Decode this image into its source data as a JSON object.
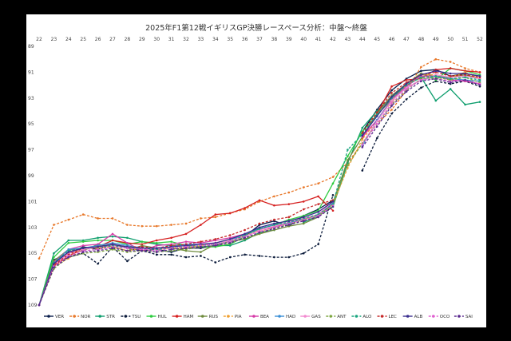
{
  "chart_data": {
    "type": "line",
    "title": "2025年F1第12戦イギリスGP決勝レースペース分析：中盤〜終盤",
    "x": [
      22,
      23,
      24,
      25,
      26,
      27,
      28,
      29,
      30,
      31,
      32,
      33,
      34,
      35,
      36,
      37,
      38,
      39,
      40,
      41,
      42,
      43,
      44,
      45,
      46,
      47,
      48,
      49,
      50,
      51,
      52
    ],
    "xlim": [
      22,
      52
    ],
    "ylim": [
      89,
      109
    ],
    "y_axis_inverted": true,
    "y_ticks": [
      89,
      91,
      93,
      95,
      97,
      99,
      101,
      103,
      105,
      107,
      109
    ],
    "grid": "none",
    "legend_position": "bottom",
    "series": [
      {
        "name": "VER",
        "color": "#0b1f4d",
        "dash": "solid",
        "marker": "circle",
        "values": [
          109,
          105.5,
          105,
          104.5,
          104.7,
          104.3,
          104.6,
          104.8,
          104.7,
          104.9,
          104.6,
          104.6,
          104.4,
          104.0,
          103.7,
          102.8,
          102.5,
          102.9,
          102.1,
          101.6,
          100.9,
          null,
          95.6,
          93.9,
          92.4,
          91.5,
          90.9,
          90.8,
          91.3,
          91.1,
          91.3
        ]
      },
      {
        "name": "NOR",
        "color": "#e8782a",
        "dash": "dash",
        "marker": "circle",
        "values": [
          105.4,
          102.8,
          102.4,
          102.0,
          102.3,
          102.3,
          102.8,
          102.9,
          102.9,
          102.8,
          102.7,
          102.3,
          102.2,
          101.9,
          101.6,
          101.0,
          100.6,
          100.3,
          99.9,
          99.6,
          99.1,
          98.0,
          96.5,
          95.0,
          93.9,
          92.4,
          90.6,
          90.0,
          90.2,
          90.7,
          91.0
        ]
      },
      {
        "name": "STR",
        "color": "#0f9e6e",
        "dash": "solid",
        "marker": "circle",
        "values": [
          109,
          105.0,
          104.0,
          104.0,
          103.8,
          103.7,
          103.8,
          104.1,
          104.3,
          104.4,
          104.3,
          104.5,
          104.4,
          104.4,
          104.0,
          103.4,
          103.2,
          null,
          102.6,
          102.1,
          101.4,
          98.0,
          95.3,
          94.0,
          92.9,
          92.0,
          91.4,
          93.2,
          92.3,
          93.5,
          93.3
        ]
      },
      {
        "name": "TSU",
        "color": "#0a1a3a",
        "dash": "dash",
        "marker": "circle",
        "values": [
          109,
          105.9,
          105.3,
          105.0,
          105.8,
          104.5,
          105.6,
          104.8,
          105.1,
          105.1,
          105.3,
          105.2,
          105.7,
          105.3,
          105.1,
          105.2,
          105.3,
          105.3,
          105.0,
          104.3,
          100.5,
          null,
          98.6,
          96.1,
          94.2,
          93.1,
          92.2,
          91.7,
          91.9,
          91.7,
          92.1
        ]
      },
      {
        "name": "HUL",
        "color": "#2ecc40",
        "dash": "solid",
        "marker": "circle",
        "values": [
          109,
          105.3,
          104.2,
          104.1,
          104.0,
          104.0,
          104.3,
          104.1,
          104.2,
          104.1,
          104.4,
          104.5,
          104.5,
          104.3,
          103.7,
          103.1,
          102.8,
          102.4,
          102.1,
          101.7,
          99.6,
          97.5,
          95.6,
          94.3,
          93.1,
          91.9,
          91.1,
          91.6,
          90.7,
          90.9,
          91.2
        ]
      },
      {
        "name": "HAM",
        "color": "#d62020",
        "dash": "solid",
        "marker": "circle",
        "values": [
          109,
          106.0,
          105.2,
          104.7,
          104.5,
          104.0,
          104.2,
          104.3,
          104.0,
          103.8,
          103.5,
          102.8,
          102.0,
          101.9,
          101.5,
          100.9,
          101.3,
          101.2,
          101.0,
          100.6,
          101.7,
          null,
          96.1,
          94.2,
          92.1,
          91.6,
          91.5,
          90.8,
          90.7,
          90.9,
          91.0
        ]
      },
      {
        "name": "RUS",
        "color": "#6e8b3d",
        "dash": "solid",
        "marker": "circle",
        "values": [
          109,
          105.6,
          104.7,
          104.8,
          104.3,
          104.5,
          104.8,
          104.4,
          104.6,
          104.6,
          104.8,
          104.9,
          104.3,
          104.1,
          103.9,
          103.5,
          103.2,
          102.9,
          102.7,
          102.2,
          101.1,
          97.8,
          96.0,
          94.2,
          92.8,
          91.9,
          91.1,
          91.3,
          91.4,
          91.2,
          91.5
        ]
      },
      {
        "name": "PIA",
        "color": "#f0a030",
        "dash": "dash",
        "marker": "circle",
        "values": [
          109,
          106.0,
          105.4,
          104.6,
          104.6,
          104.5,
          104.8,
          104.6,
          104.7,
          104.6,
          104.6,
          104.4,
          104.2,
          103.9,
          103.6,
          103.3,
          103.0,
          102.7,
          102.4,
          102.0,
          101.2,
          98.4,
          96.2,
          94.7,
          93.3,
          92.0,
          91.2,
          91.2,
          91.4,
          91.0,
          91.5
        ]
      },
      {
        "name": "BEA",
        "color": "#d63aa8",
        "dash": "solid",
        "marker": "circle",
        "values": [
          109,
          105.7,
          104.7,
          104.4,
          104.3,
          103.5,
          104.2,
          104.8,
          104.4,
          104.3,
          104.1,
          104.2,
          104.0,
          103.8,
          103.5,
          103.1,
          103.0,
          102.6,
          102.3,
          102.0,
          101.0,
          null,
          96.0,
          94.7,
          93.1,
          92.1,
          91.3,
          91.3,
          91.6,
          91.7,
          91.9
        ]
      },
      {
        "name": "HAD",
        "color": "#3a8fd6",
        "dash": "solid",
        "marker": "circle",
        "values": [
          109,
          105.8,
          104.7,
          104.6,
          104.4,
          104.2,
          104.4,
          104.6,
          104.6,
          104.5,
          104.3,
          104.3,
          104.3,
          104.0,
          103.5,
          103.1,
          102.8,
          102.7,
          102.3,
          102.0,
          101.1,
          null,
          96.7,
          94.7,
          93.2,
          92.2,
          91.6,
          91.3,
          91.5,
          91.6,
          91.7
        ]
      },
      {
        "name": "GAS",
        "color": "#f28ad0",
        "dash": "solid",
        "marker": "circle",
        "values": [
          109,
          105.9,
          105.0,
          104.7,
          104.5,
          104.4,
          104.6,
          104.6,
          104.7,
          104.5,
          104.4,
          104.3,
          104.3,
          104.0,
          103.7,
          103.2,
          102.9,
          102.6,
          102.3,
          102.0,
          101.0,
          null,
          96.5,
          94.8,
          93.2,
          92.2,
          91.6,
          91.2,
          91.4,
          91.3,
          91.5
        ]
      },
      {
        "name": "ANT",
        "color": "#7da640",
        "dash": "dash",
        "marker": "circle",
        "values": [
          109,
          106.2,
          105.3,
          105.0,
          104.9,
          104.7,
          104.9,
          104.8,
          104.9,
          104.8,
          104.7,
          104.5,
          104.4,
          104.2,
          103.8,
          103.5,
          103.0,
          102.8,
          102.4,
          102.1,
          101.3,
          98.2,
          96.5,
          95.0,
          93.5,
          92.4,
          91.5,
          91.4,
          91.6,
          91.4,
          91.8
        ]
      },
      {
        "name": "ALO",
        "color": "#1aa57f",
        "dash": "dash",
        "marker": "circle",
        "values": [
          109,
          105.7,
          104.8,
          104.6,
          104.5,
          104.4,
          104.6,
          104.6,
          104.7,
          104.6,
          104.5,
          104.4,
          104.3,
          104.1,
          103.6,
          103.1,
          102.8,
          102.6,
          102.3,
          102.0,
          101.2,
          97.0,
          95.8,
          94.3,
          93.0,
          92.0,
          91.4,
          91.3,
          91.5,
          91.4,
          91.6
        ]
      },
      {
        "name": "LEC",
        "color": "#c62828",
        "dash": "dash",
        "marker": "circle",
        "values": [
          109,
          105.9,
          105.1,
          104.6,
          104.5,
          104.3,
          104.5,
          104.5,
          104.6,
          104.4,
          104.3,
          104.1,
          103.9,
          103.6,
          103.2,
          102.7,
          102.4,
          102.2,
          101.6,
          101.2,
          100.9,
          null,
          95.7,
          94.1,
          92.6,
          91.8,
          91.2,
          91.0,
          91.3,
          91.2,
          91.4
        ]
      },
      {
        "name": "ALB",
        "color": "#3b2f8f",
        "dash": "solid",
        "marker": "circle",
        "values": [
          109,
          105.8,
          104.9,
          104.6,
          104.5,
          104.3,
          104.5,
          104.6,
          104.6,
          104.5,
          104.4,
          104.3,
          104.2,
          103.9,
          103.5,
          103.0,
          102.7,
          102.5,
          102.2,
          101.8,
          101.0,
          null,
          95.9,
          94.4,
          92.9,
          91.9,
          91.2,
          90.9,
          91.1,
          91.1,
          91.3
        ]
      },
      {
        "name": "OCO",
        "color": "#e060d0",
        "dash": "dash",
        "marker": "circle",
        "values": [
          109,
          106.0,
          105.2,
          104.8,
          104.7,
          104.5,
          104.6,
          104.7,
          104.8,
          104.6,
          104.5,
          104.4,
          104.3,
          104.1,
          103.7,
          103.3,
          103.0,
          102.7,
          102.4,
          102.1,
          101.3,
          null,
          96.6,
          95.0,
          93.4,
          92.3,
          91.6,
          91.5,
          91.7,
          91.6,
          91.9
        ]
      },
      {
        "name": "SAI",
        "color": "#5b2a8f",
        "dash": "dash",
        "marker": "circle",
        "values": [
          109,
          106.1,
          105.3,
          104.9,
          104.8,
          104.6,
          104.8,
          104.8,
          104.9,
          104.7,
          104.6,
          104.5,
          104.4,
          104.2,
          103.8,
          103.4,
          103.1,
          102.8,
          102.5,
          102.2,
          101.4,
          null,
          96.8,
          95.2,
          93.6,
          92.5,
          91.7,
          91.5,
          91.8,
          91.6,
          92.0
        ]
      }
    ]
  }
}
